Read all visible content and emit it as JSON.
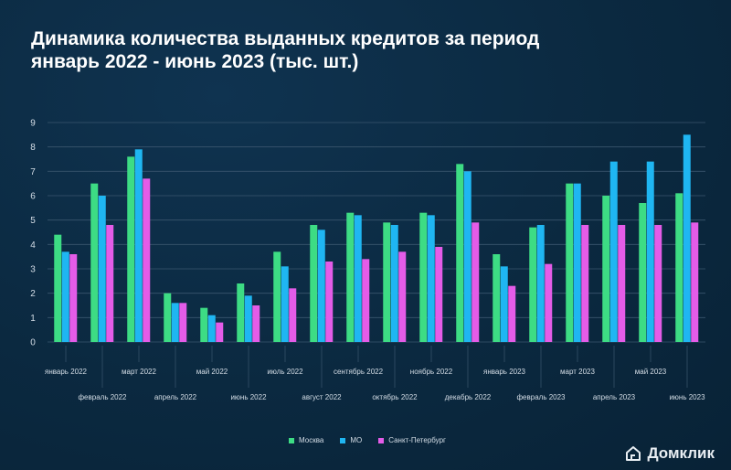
{
  "title_line1": "Динамика количества выданных кредитов за период",
  "title_line2": "январь 2022 - июнь 2023 (тыс. шт.)",
  "brand": "Домклик",
  "colors": {
    "moscow": "#3ddc84",
    "mo": "#1fb6f2",
    "spb": "#e45ce8",
    "grid": "#3a566e"
  },
  "chart_data": {
    "type": "bar",
    "title": "Динамика количества выданных кредитов за период январь 2022 - июнь 2023 (тыс. шт.)",
    "ylim": [
      0,
      9
    ],
    "yticks": [
      0,
      1,
      2,
      3,
      4,
      5,
      6,
      7,
      8,
      9
    ],
    "grid": true,
    "legend_position": "bottom",
    "categories": [
      "январь 2022",
      "февраль 2022",
      "март 2022",
      "апрель 2022",
      "май 2022",
      "июнь 2022",
      "июль 2022",
      "август 2022",
      "сентябрь 2022",
      "октябрь 2022",
      "ноябрь 2022",
      "декабрь 2022",
      "январь 2023",
      "февраль 2023",
      "март 2023",
      "апрель 2023",
      "май 2023",
      "июнь 2023"
    ],
    "series": [
      {
        "name": "Москва",
        "values": [
          4.4,
          6.5,
          7.6,
          2.0,
          1.4,
          2.4,
          3.7,
          4.8,
          5.3,
          4.9,
          5.3,
          7.3,
          3.6,
          4.7,
          6.5,
          6.0,
          5.7,
          6.1
        ]
      },
      {
        "name": "МО",
        "values": [
          3.7,
          6.0,
          7.9,
          1.6,
          1.1,
          1.9,
          3.1,
          4.6,
          5.2,
          4.8,
          5.2,
          7.0,
          3.1,
          4.8,
          6.5,
          7.4,
          7.4,
          8.5
        ]
      },
      {
        "name": "Санкт-Петербург",
        "values": [
          3.6,
          4.8,
          6.7,
          1.6,
          0.8,
          1.5,
          2.2,
          3.3,
          3.4,
          3.7,
          3.9,
          4.9,
          2.3,
          3.2,
          4.8,
          4.8,
          4.8,
          4.9
        ]
      }
    ]
  }
}
